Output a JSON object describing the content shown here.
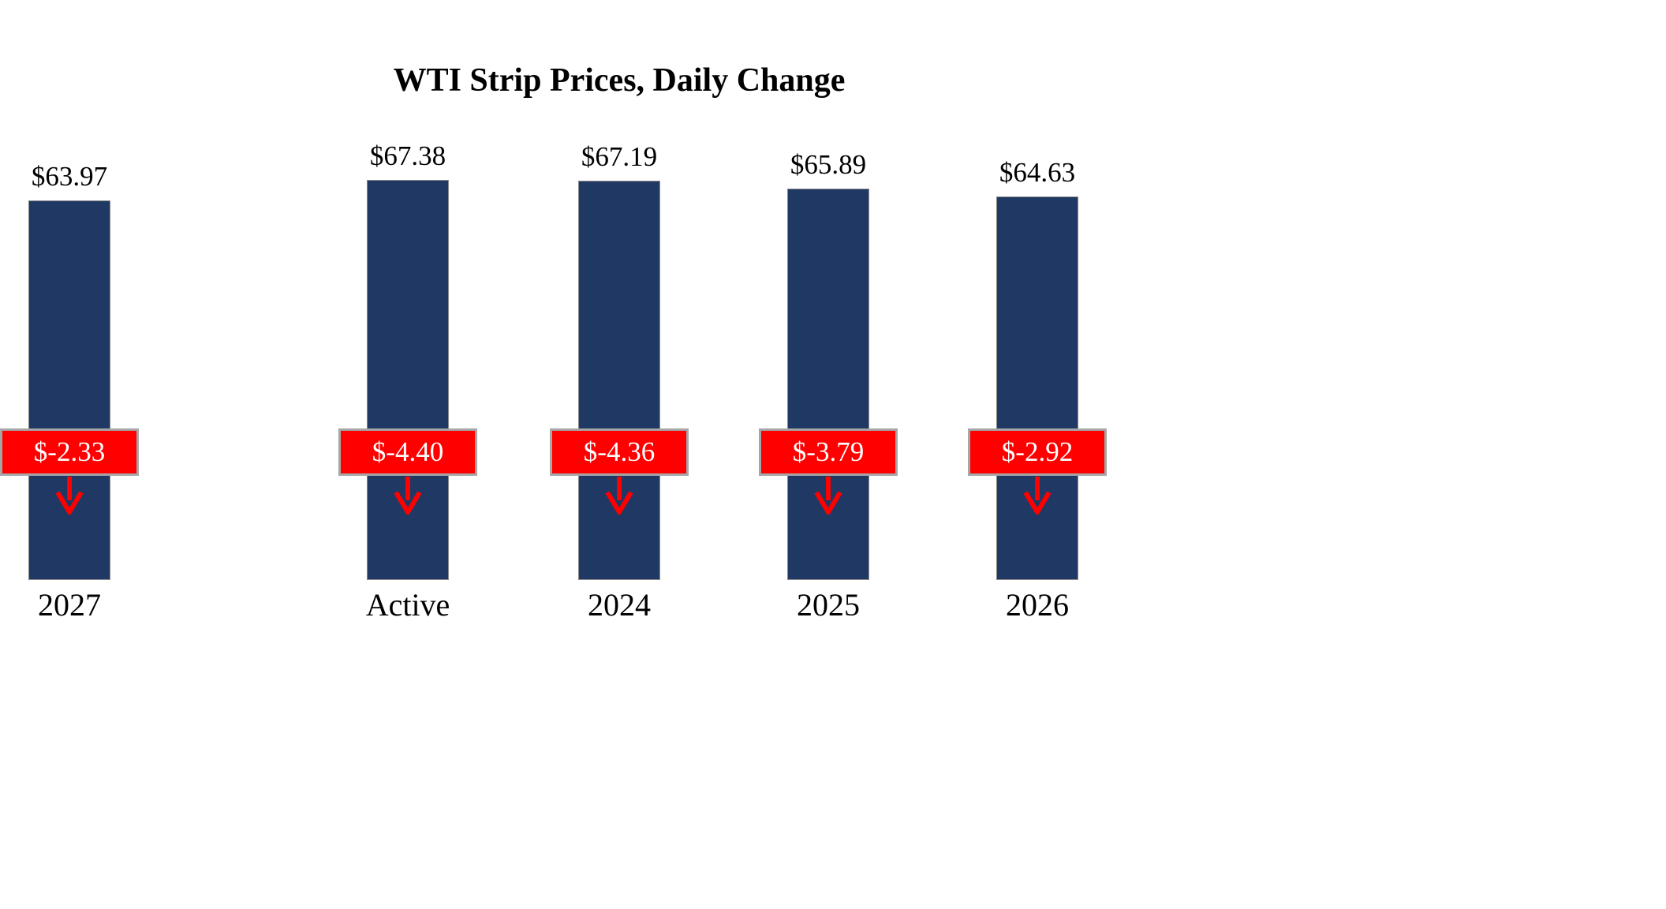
{
  "chart_data": {
    "type": "bar",
    "title": "WTI Strip Prices, Daily Change",
    "categories": [
      "Active",
      "2024",
      "2025",
      "2026",
      "2027"
    ],
    "series": [
      {
        "name": "WTI Strip Price",
        "values": [
          67.38,
          67.19,
          65.89,
          64.63,
          63.97
        ]
      },
      {
        "name": "Daily Change",
        "values": [
          -4.4,
          -4.36,
          -3.79,
          -2.92,
          -2.33
        ]
      }
    ],
    "price_labels": [
      "$67.38",
      "$67.19",
      "$65.89",
      "$64.63",
      "$63.97"
    ],
    "change_labels": [
      "$-4.40",
      "$-4.36",
      "$-3.79",
      "$-2.92",
      "$-2.33"
    ],
    "ylim": [
      0,
      70
    ],
    "grid": false,
    "legend": "none",
    "colors": {
      "bar": "#1F3864",
      "change_box": "#FF0000",
      "change_text": "#FFFFFF",
      "change_box_border": "#A6A6A6",
      "background": "#FFFFFF"
    }
  }
}
